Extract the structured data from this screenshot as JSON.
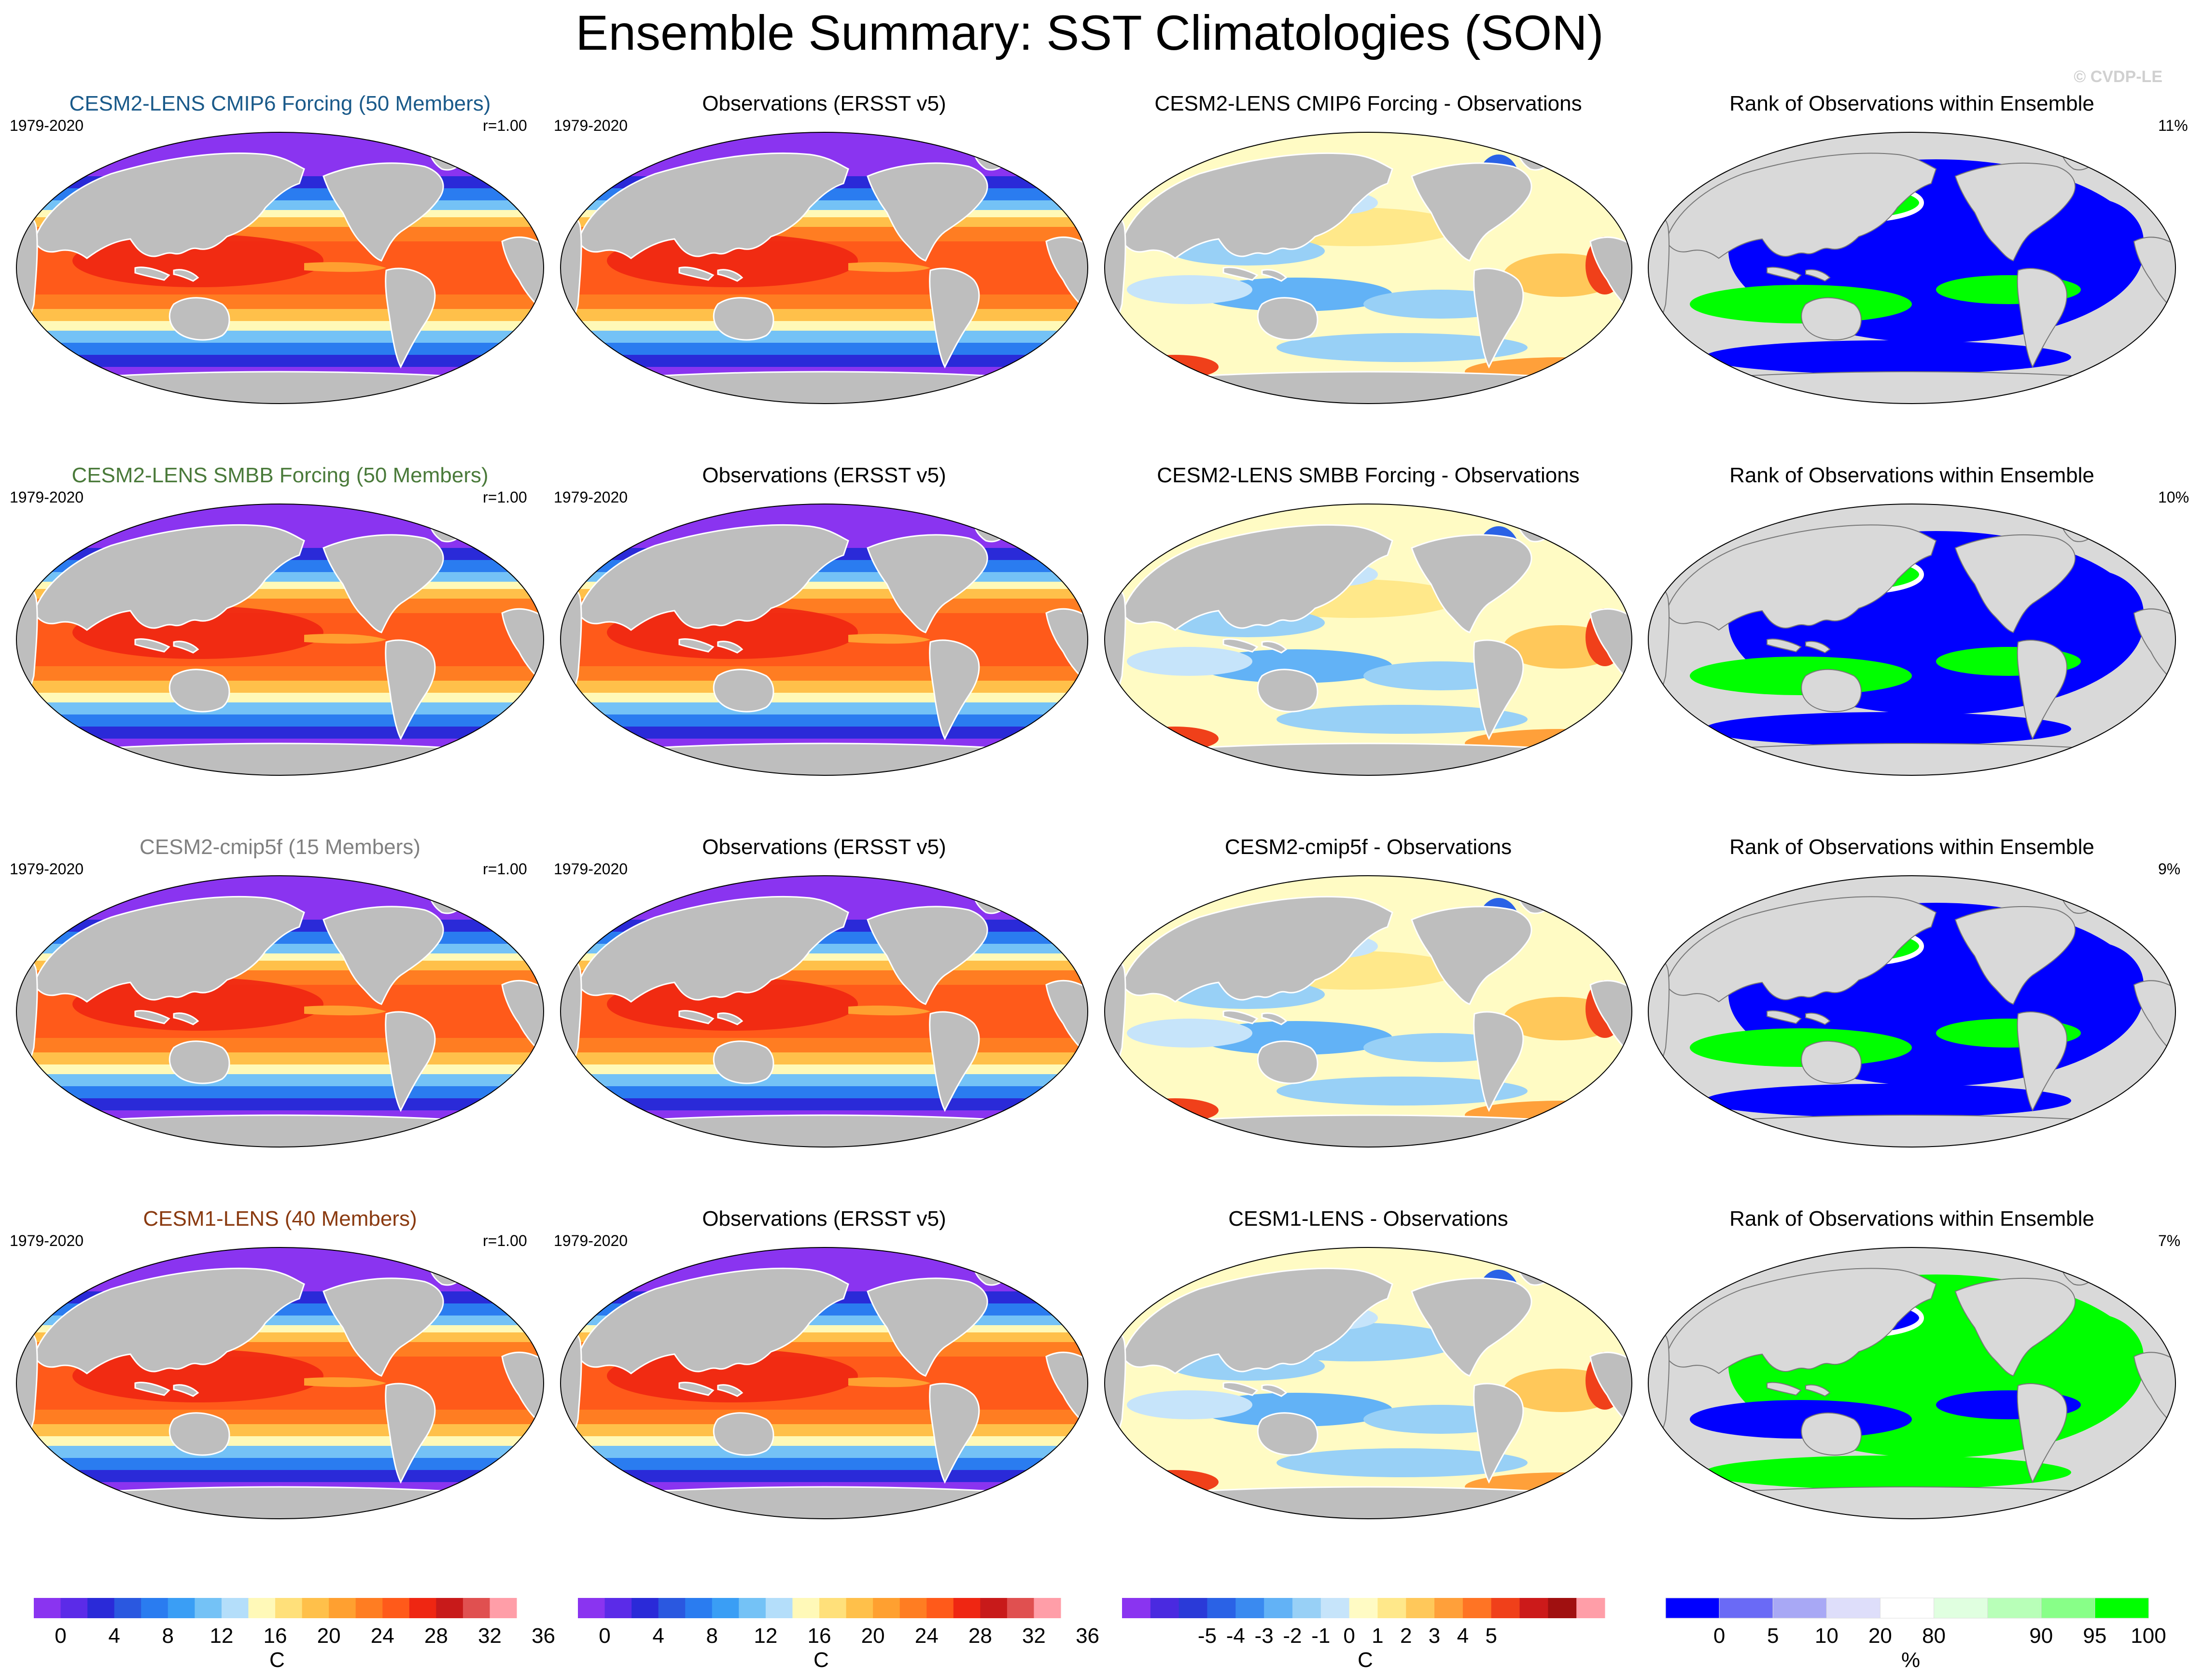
{
  "title": "Ensemble Summary: SST Climatologies (SON)",
  "copyright": "© CVDP-LE",
  "colors": {
    "land": "#bebebe",
    "nodata": "#d9d9d9",
    "sst": [
      "#8a34f0",
      "#5b2be8",
      "#2a2ad8",
      "#2a58e0",
      "#2a7cf0",
      "#3a9ef5",
      "#74c2f6",
      "#b4defa",
      "#fff9b8",
      "#ffe07a",
      "#ffc04a",
      "#ffa030",
      "#ff7d22",
      "#ff5a1a",
      "#ef2612",
      "#c81a1a",
      "#e05050",
      "#ff9ea8"
    ],
    "diff": [
      "#8a34f0",
      "#4a2ae0",
      "#2a3ad8",
      "#2a62e6",
      "#3a8af0",
      "#62b2f6",
      "#98d0f6",
      "#c6e4fa",
      "#fffbc4",
      "#ffe88a",
      "#ffc85a",
      "#ffa03a",
      "#ff7424",
      "#f0401a",
      "#cc1a1a",
      "#a01010",
      "#ff9ea8"
    ],
    "rank": [
      "#0000ff",
      "#6a6af6",
      "#a8a8f5",
      "#dedefa",
      "#ffffff",
      "#e0ffe0",
      "#b8ffb8",
      "#88ff88",
      "#00ff00"
    ]
  },
  "rows": [
    {
      "ensemble": {
        "title": "CESM2-LENS CMIP6 Forcing (50 Members)",
        "title_color": "#1a5a8a",
        "period": "1979-2020",
        "r": "r=1.00"
      },
      "obs": {
        "title": "Observations (ERSST v5)",
        "period": "1979-2020"
      },
      "diff": {
        "title": "CESM2-LENS CMIP6 Forcing - Observations"
      },
      "rank": {
        "title": "Rank of Observations within Ensemble",
        "pct": "11%"
      }
    },
    {
      "ensemble": {
        "title": "CESM2-LENS SMBB Forcing (50 Members)",
        "title_color": "#4a7a3a",
        "period": "1979-2020",
        "r": "r=1.00"
      },
      "obs": {
        "title": "Observations (ERSST v5)",
        "period": "1979-2020"
      },
      "diff": {
        "title": "CESM2-LENS SMBB Forcing - Observations"
      },
      "rank": {
        "title": "Rank of Observations within Ensemble",
        "pct": "10%"
      }
    },
    {
      "ensemble": {
        "title": "CESM2-cmip5f (15 Members)",
        "title_color": "#808080",
        "period": "1979-2020",
        "r": "r=1.00"
      },
      "obs": {
        "title": "Observations (ERSST v5)",
        "period": "1979-2020"
      },
      "diff": {
        "title": "CESM2-cmip5f - Observations"
      },
      "rank": {
        "title": "Rank of Observations within Ensemble",
        "pct": "9%"
      }
    },
    {
      "ensemble": {
        "title": "CESM1-LENS (40 Members)",
        "title_color": "#8a3a10",
        "period": "1979-2020",
        "r": "r=1.00"
      },
      "obs": {
        "title": "Observations (ERSST v5)",
        "period": "1979-2020"
      },
      "diff": {
        "title": "CESM1-LENS - Observations"
      },
      "rank": {
        "title": "Rank of Observations within Ensemble",
        "pct": "7%"
      }
    }
  ],
  "colorbars": [
    {
      "unit": "C",
      "labels": [
        "0",
        "4",
        "8",
        "12",
        "16",
        "20",
        "24",
        "28",
        "32",
        "36"
      ]
    },
    {
      "unit": "C",
      "labels": [
        "0",
        "4",
        "8",
        "12",
        "16",
        "20",
        "24",
        "28",
        "32",
        "36"
      ]
    },
    {
      "unit": "C",
      "labels": [
        "-5",
        "-4",
        "-3",
        "-2",
        "-1",
        "0",
        "1",
        "2",
        "3",
        "4",
        "5"
      ]
    },
    {
      "unit": "%",
      "labels": [
        "0",
        "5",
        "10",
        "20",
        "80",
        "90",
        "95",
        "100"
      ]
    }
  ]
}
